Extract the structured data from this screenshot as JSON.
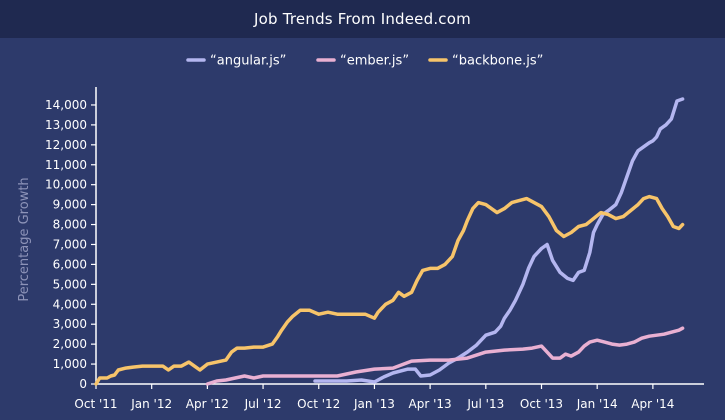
{
  "header": {
    "title": "Job Trends From Indeed.com"
  },
  "chart_data": {
    "type": "line",
    "title": "Job Trends From Indeed.com",
    "xlabel": "",
    "ylabel": "Percentage Growth",
    "x_range": [
      0,
      32
    ],
    "ylim": [
      0,
      14500
    ],
    "y_ticks": [
      0,
      1000,
      2000,
      3000,
      4000,
      5000,
      6000,
      7000,
      8000,
      9000,
      10000,
      11000,
      12000,
      13000,
      14000
    ],
    "y_tick_labels": [
      "0",
      "1,000",
      "2,000",
      "3,000",
      "4,000",
      "5,000",
      "6,000",
      "7,000",
      "8,000",
      "9,000",
      "10,000",
      "11,000",
      "12,000",
      "13,000",
      "14,000"
    ],
    "x_ticks": [
      {
        "x": 0,
        "label": "Oct '11"
      },
      {
        "x": 3,
        "label": "Jan '12"
      },
      {
        "x": 6,
        "label": "Apr '12"
      },
      {
        "x": 9,
        "label": "Jul '12"
      },
      {
        "x": 12,
        "label": "Oct '12"
      },
      {
        "x": 15,
        "label": "Jan '13"
      },
      {
        "x": 18,
        "label": "Apr '13"
      },
      {
        "x": 21,
        "label": "Jul '13"
      },
      {
        "x": 24,
        "label": "Oct '13"
      },
      {
        "x": 27,
        "label": "Jan '14"
      },
      {
        "x": 30,
        "label": "Apr '14"
      }
    ],
    "grid": false,
    "legend_position": "top",
    "series": [
      {
        "name": "“angular.js”",
        "color": "#b4b6f0",
        "points": [
          [
            11.8,
            150
          ],
          [
            12.5,
            150
          ],
          [
            13.5,
            150
          ],
          [
            14.3,
            200
          ],
          [
            15,
            100
          ],
          [
            15.5,
            350
          ],
          [
            16,
            550
          ],
          [
            16.8,
            750
          ],
          [
            17.2,
            750
          ],
          [
            17.5,
            400
          ],
          [
            18,
            450
          ],
          [
            18.5,
            700
          ],
          [
            19,
            1050
          ],
          [
            19.5,
            1300
          ],
          [
            20,
            1600
          ],
          [
            20.5,
            1950
          ],
          [
            21,
            2450
          ],
          [
            21.5,
            2600
          ],
          [
            21.8,
            2900
          ],
          [
            22,
            3300
          ],
          [
            22.3,
            3700
          ],
          [
            22.6,
            4200
          ],
          [
            23,
            5000
          ],
          [
            23.3,
            5800
          ],
          [
            23.6,
            6400
          ],
          [
            24,
            6800
          ],
          [
            24.3,
            7000
          ],
          [
            24.6,
            6200
          ],
          [
            25,
            5600
          ],
          [
            25.4,
            5300
          ],
          [
            25.7,
            5200
          ],
          [
            26,
            5600
          ],
          [
            26.3,
            5700
          ],
          [
            26.6,
            6600
          ],
          [
            26.8,
            7600
          ],
          [
            27,
            8000
          ],
          [
            27.3,
            8500
          ],
          [
            27.6,
            8700
          ],
          [
            28,
            9000
          ],
          [
            28.3,
            9600
          ],
          [
            28.6,
            10400
          ],
          [
            28.9,
            11200
          ],
          [
            29.2,
            11700
          ],
          [
            29.5,
            11900
          ],
          [
            29.8,
            12100
          ],
          [
            30,
            12200
          ],
          [
            30.2,
            12400
          ],
          [
            30.4,
            12800
          ],
          [
            30.7,
            13000
          ],
          [
            31,
            13300
          ],
          [
            31.3,
            14200
          ],
          [
            31.6,
            14300
          ]
        ]
      },
      {
        "name": "“ember.js”",
        "color": "#e9b0d2",
        "points": [
          [
            6,
            0
          ],
          [
            6.5,
            150
          ],
          [
            7,
            200
          ],
          [
            7.5,
            300
          ],
          [
            8,
            400
          ],
          [
            8.5,
            300
          ],
          [
            9,
            400
          ],
          [
            10,
            400
          ],
          [
            11,
            400
          ],
          [
            12,
            400
          ],
          [
            13,
            400
          ],
          [
            14,
            600
          ],
          [
            15,
            750
          ],
          [
            16,
            800
          ],
          [
            17,
            1150
          ],
          [
            18,
            1200
          ],
          [
            19,
            1200
          ],
          [
            20,
            1300
          ],
          [
            21,
            1600
          ],
          [
            22,
            1700
          ],
          [
            23,
            1750
          ],
          [
            23.5,
            1800
          ],
          [
            24,
            1900
          ],
          [
            24.3,
            1600
          ],
          [
            24.6,
            1300
          ],
          [
            25,
            1300
          ],
          [
            25.3,
            1500
          ],
          [
            25.6,
            1400
          ],
          [
            26,
            1600
          ],
          [
            26.3,
            1900
          ],
          [
            26.6,
            2100
          ],
          [
            27,
            2200
          ],
          [
            27.4,
            2100
          ],
          [
            27.8,
            2000
          ],
          [
            28.2,
            1950
          ],
          [
            28.6,
            2000
          ],
          [
            29,
            2100
          ],
          [
            29.4,
            2300
          ],
          [
            29.8,
            2400
          ],
          [
            30.2,
            2450
          ],
          [
            30.6,
            2500
          ],
          [
            31,
            2600
          ],
          [
            31.4,
            2700
          ],
          [
            31.6,
            2800
          ]
        ]
      },
      {
        "name": "“backbone.js”",
        "color": "#f7c46a",
        "points": [
          [
            0,
            0
          ],
          [
            0.2,
            300
          ],
          [
            0.6,
            300
          ],
          [
            0.8,
            400
          ],
          [
            1,
            450
          ],
          [
            1.2,
            700
          ],
          [
            1.6,
            800
          ],
          [
            2,
            850
          ],
          [
            2.5,
            900
          ],
          [
            3,
            900
          ],
          [
            3.6,
            900
          ],
          [
            3.9,
            700
          ],
          [
            4.2,
            900
          ],
          [
            4.6,
            900
          ],
          [
            5,
            1100
          ],
          [
            5.3,
            900
          ],
          [
            5.6,
            700
          ],
          [
            6,
            1000
          ],
          [
            6.5,
            1100
          ],
          [
            7,
            1200
          ],
          [
            7.3,
            1600
          ],
          [
            7.6,
            1800
          ],
          [
            8,
            1800
          ],
          [
            8.5,
            1850
          ],
          [
            9,
            1850
          ],
          [
            9.5,
            2000
          ],
          [
            9.8,
            2400
          ],
          [
            10,
            2700
          ],
          [
            10.3,
            3100
          ],
          [
            10.6,
            3400
          ],
          [
            11,
            3700
          ],
          [
            11.5,
            3700
          ],
          [
            12,
            3500
          ],
          [
            12.5,
            3600
          ],
          [
            13,
            3500
          ],
          [
            14,
            3500
          ],
          [
            14.5,
            3500
          ],
          [
            15,
            3300
          ],
          [
            15.2,
            3600
          ],
          [
            15.6,
            4000
          ],
          [
            16,
            4200
          ],
          [
            16.3,
            4600
          ],
          [
            16.6,
            4400
          ],
          [
            17,
            4600
          ],
          [
            17.3,
            5200
          ],
          [
            17.6,
            5700
          ],
          [
            18,
            5800
          ],
          [
            18.4,
            5800
          ],
          [
            18.8,
            6000
          ],
          [
            19.2,
            6400
          ],
          [
            19.5,
            7200
          ],
          [
            19.8,
            7700
          ],
          [
            20,
            8200
          ],
          [
            20.3,
            8800
          ],
          [
            20.6,
            9100
          ],
          [
            21,
            9000
          ],
          [
            21.3,
            8800
          ],
          [
            21.6,
            8600
          ],
          [
            22,
            8800
          ],
          [
            22.4,
            9100
          ],
          [
            22.8,
            9200
          ],
          [
            23.2,
            9300
          ],
          [
            23.6,
            9100
          ],
          [
            24,
            8900
          ],
          [
            24.4,
            8400
          ],
          [
            24.8,
            7700
          ],
          [
            25.2,
            7400
          ],
          [
            25.6,
            7600
          ],
          [
            26,
            7900
          ],
          [
            26.4,
            8000
          ],
          [
            26.8,
            8300
          ],
          [
            27.2,
            8600
          ],
          [
            27.6,
            8500
          ],
          [
            28,
            8300
          ],
          [
            28.4,
            8400
          ],
          [
            28.8,
            8700
          ],
          [
            29.2,
            9000
          ],
          [
            29.5,
            9300
          ],
          [
            29.8,
            9400
          ],
          [
            30.2,
            9300
          ],
          [
            30.5,
            8800
          ],
          [
            30.8,
            8400
          ],
          [
            31.1,
            7900
          ],
          [
            31.4,
            7800
          ],
          [
            31.6,
            8000
          ]
        ]
      }
    ]
  }
}
